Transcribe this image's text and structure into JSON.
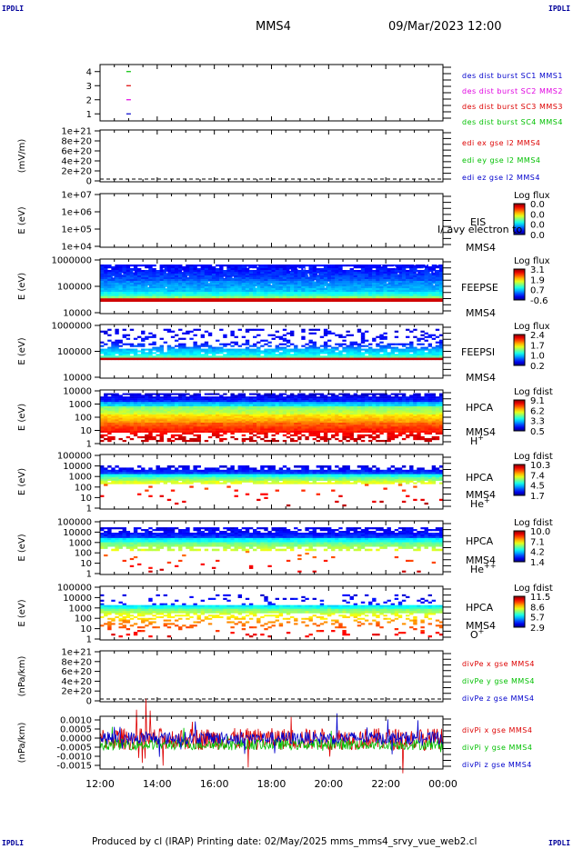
{
  "header": {
    "corner_label": "IPDLI",
    "spacecraft": "MMS4",
    "datetime": "09/Mar/2023 12:00"
  },
  "footer": {
    "text": "Produced by cl (IRAP)   Printing date: 02/May/2025   mms_mms4_srvy_vue_web2.cl"
  },
  "colors": {
    "blue": "#0000cc",
    "magenta": "#e000e0",
    "red": "#dd0000",
    "green": "#00c000"
  },
  "chart_data": [
    {
      "id": "burst",
      "type": "scatter",
      "ylim": [
        0.5,
        4.5
      ],
      "y_ticks": [
        "1",
        "2",
        "3",
        "4"
      ],
      "x_ticks": [
        "12:00",
        "14:00",
        "16:00",
        "18:00",
        "20:00",
        "22:00",
        "00:00"
      ],
      "points": [
        {
          "x": "13:00",
          "y": 4,
          "color": "green"
        },
        {
          "x": "13:00",
          "y": 3,
          "color": "red"
        },
        {
          "x": "13:00",
          "y": 2,
          "color": "magenta"
        },
        {
          "x": "13:00",
          "y": 1,
          "color": "blue"
        }
      ],
      "legend": [
        {
          "name": "des dist burst SC1 MMS1",
          "color": "blue"
        },
        {
          "name": "des dist burst SC2 MMS2",
          "color": "magenta"
        },
        {
          "name": "des dist burst SC3 MMS3",
          "color": "red"
        },
        {
          "name": "des dist burst SC4 MMS4",
          "color": "green"
        }
      ]
    },
    {
      "id": "edi",
      "type": "line",
      "ylabel": "(mV/m)",
      "y_ticks": [
        "1e+21",
        "8e+20",
        "6e+20",
        "4e+20",
        "2e+20",
        "0"
      ],
      "zero_line": true,
      "legend": [
        {
          "name": "edi ex gse l2 MMS4",
          "color": "red"
        },
        {
          "name": "edi ey gse l2 MMS4",
          "color": "green"
        },
        {
          "name": "edi ez gse l2 MMS4",
          "color": "blue"
        }
      ]
    },
    {
      "id": "eis",
      "type": "heatmap",
      "ylabel": "E (eV)",
      "y_ticks": [
        "1e+07",
        "1e+06",
        "1e+05",
        "1e+04"
      ],
      "instrument": "EIS",
      "overlay_text": "I/ avy electron to",
      "spacecraft": "MMS4",
      "colorbar_title": "Log flux",
      "colorbar_ticks": [
        "0.0",
        "0.0",
        "0.0",
        "0.0"
      ]
    },
    {
      "id": "feepse",
      "type": "heatmap",
      "ylabel": "E (eV)",
      "y_ticks": [
        "1000000",
        "100000",
        "10000"
      ],
      "instrument": "FEEPSE",
      "spacecraft": "MMS4",
      "colorbar_title": "Log flux",
      "colorbar_ticks": [
        "3.1",
        "1.9",
        "0.7",
        "-0.6"
      ]
    },
    {
      "id": "feepsi",
      "type": "heatmap",
      "ylabel": "E (eV)",
      "y_ticks": [
        "1000000",
        "100000",
        "10000"
      ],
      "instrument": "FEEPSI",
      "spacecraft": "MMS4",
      "colorbar_title": "Log flux",
      "colorbar_ticks": [
        "2.4",
        "1.7",
        "1.0",
        "0.2"
      ]
    },
    {
      "id": "hpca_h",
      "type": "heatmap",
      "ylabel": "E (eV)",
      "y_ticks": [
        "10000",
        "1000",
        "100",
        "10",
        "1"
      ],
      "instrument": "HPCA",
      "spacecraft": "MMS4",
      "species_base": "H",
      "species_sup": "+",
      "colorbar_title": "Log fdist",
      "colorbar_ticks": [
        "9.1",
        "6.2",
        "3.3",
        "0.5"
      ]
    },
    {
      "id": "hpca_he",
      "type": "heatmap",
      "ylabel": "E (eV)",
      "y_ticks": [
        "100000",
        "10000",
        "1000",
        "100",
        "10",
        "1"
      ],
      "instrument": "HPCA",
      "spacecraft": "MMS4",
      "species_base": "He",
      "species_sup": "+",
      "colorbar_title": "Log fdist",
      "colorbar_ticks": [
        "10.3",
        "7.4",
        "4.5",
        "1.7"
      ]
    },
    {
      "id": "hpca_hepp",
      "type": "heatmap",
      "ylabel": "E (eV)",
      "y_ticks": [
        "100000",
        "10000",
        "1000",
        "100",
        "10",
        "1"
      ],
      "instrument": "HPCA",
      "spacecraft": "MMS4",
      "species_base": "He",
      "species_sup": "++",
      "colorbar_title": "Log fdist",
      "colorbar_ticks": [
        "10.0",
        "7.1",
        "4.2",
        "1.4"
      ]
    },
    {
      "id": "hpca_o",
      "type": "heatmap",
      "ylabel": "E (eV)",
      "y_ticks": [
        "100000",
        "10000",
        "1000",
        "100",
        "10",
        "1"
      ],
      "instrument": "HPCA",
      "spacecraft": "MMS4",
      "species_base": "O",
      "species_sup": "+",
      "colorbar_title": "Log fdist",
      "colorbar_ticks": [
        "11.5",
        "8.6",
        "5.7",
        "2.9"
      ]
    },
    {
      "id": "divpe",
      "type": "line",
      "ylabel": "(nPa/km)",
      "y_ticks": [
        "1e+21",
        "8e+20",
        "6e+20",
        "4e+20",
        "2e+20",
        "0"
      ],
      "zero_line": true,
      "legend": [
        {
          "name": "divPe x gse MMS4",
          "color": "red"
        },
        {
          "name": "divPe y gse MMS4",
          "color": "green"
        },
        {
          "name": "divPe z gse MMS4",
          "color": "blue"
        }
      ]
    },
    {
      "id": "divpi",
      "type": "line",
      "ylabel": "(nPa/km)",
      "y_ticks": [
        "0.0010",
        "0.0005",
        "0.0000",
        "-0.0005",
        "-0.0010",
        "-0.0015"
      ],
      "ylim": [
        -0.0017,
        0.0012
      ],
      "legend": [
        {
          "name": "divPi x gse MMS4",
          "color": "red"
        },
        {
          "name": "divPi y gse MMS4",
          "color": "green"
        },
        {
          "name": "divPi z gse MMS4",
          "color": "blue"
        }
      ]
    }
  ]
}
